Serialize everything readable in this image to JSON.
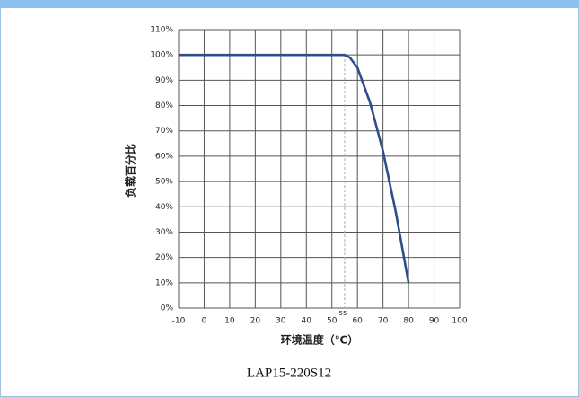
{
  "chart_data": {
    "type": "line",
    "x": [
      -10,
      55,
      57,
      60,
      65,
      70,
      75,
      80
    ],
    "series": [
      {
        "name": "LAP15-220S12",
        "color": "#2f4d8c",
        "values": [
          100,
          100,
          99,
          95,
          81,
          62,
          38,
          10
        ]
      }
    ],
    "xlabel": "环境温度（℃）",
    "ylabel": "负载百分比",
    "xlim": [
      -10,
      100
    ],
    "xticks": [
      -10,
      0,
      10,
      20,
      30,
      40,
      50,
      60,
      70,
      80,
      90,
      100
    ],
    "ylim": [
      0,
      110
    ],
    "yticks": [
      {
        "value": 0,
        "label": "0%"
      },
      {
        "value": 10,
        "label": "10%"
      },
      {
        "value": 20,
        "label": "20%"
      },
      {
        "value": 30,
        "label": "30%"
      },
      {
        "value": 40,
        "label": "40%"
      },
      {
        "value": 50,
        "label": "50%"
      },
      {
        "value": 60,
        "label": "60%"
      },
      {
        "value": 70,
        "label": "70%"
      },
      {
        "value": 80,
        "label": "80%"
      },
      {
        "value": 90,
        "label": "90%"
      },
      {
        "value": 100,
        "label": "100%"
      },
      {
        "value": 110,
        "label": "110%"
      }
    ],
    "annotations": [
      {
        "text": "55",
        "x": 55
      }
    ],
    "grid": true
  }
}
